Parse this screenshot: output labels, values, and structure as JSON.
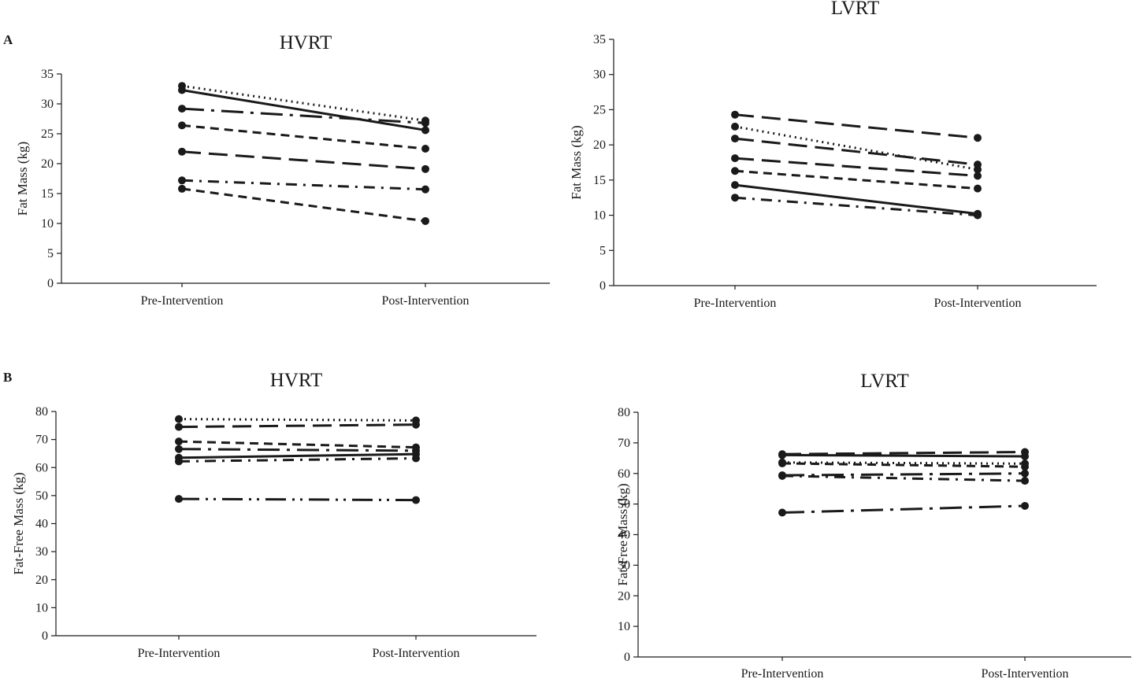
{
  "panel_labels": [
    "A",
    "B"
  ],
  "chart_data": [
    {
      "type": "line",
      "title": "HVRT",
      "ylabel": "Fat Mass (kg)",
      "xlabel": "",
      "categories": [
        "Pre-Intervention",
        "Post-Intervention"
      ],
      "ylim": [
        0,
        35
      ],
      "yticks": [
        0,
        5,
        10,
        15,
        20,
        25,
        30,
        35
      ],
      "grid": false,
      "series": [
        {
          "values": [
            33.0,
            27.2
          ],
          "dash": "dotted"
        },
        {
          "values": [
            32.3,
            25.6
          ],
          "dash": "solid"
        },
        {
          "values": [
            29.2,
            26.8
          ],
          "dash": "longdash-dot"
        },
        {
          "values": [
            26.4,
            22.5
          ],
          "dash": "dash"
        },
        {
          "values": [
            22.0,
            19.1
          ],
          "dash": "longdash"
        },
        {
          "values": [
            17.2,
            15.7
          ],
          "dash": "dashdot"
        },
        {
          "values": [
            15.8,
            10.4
          ],
          "dash": "dash"
        }
      ]
    },
    {
      "type": "line",
      "title": "LVRT",
      "ylabel": "Fat Mass (kg)",
      "xlabel": "",
      "categories": [
        "Pre-Intervention",
        "Post-Intervention"
      ],
      "ylim": [
        0,
        35
      ],
      "yticks": [
        0,
        5,
        10,
        15,
        20,
        25,
        30,
        35
      ],
      "grid": false,
      "series": [
        {
          "values": [
            24.3,
            21.0
          ],
          "dash": "longdash"
        },
        {
          "values": [
            22.6,
            16.5
          ],
          "dash": "dotted"
        },
        {
          "values": [
            20.9,
            17.2
          ],
          "dash": "longdash"
        },
        {
          "values": [
            18.1,
            15.6
          ],
          "dash": "longdash"
        },
        {
          "values": [
            16.3,
            13.8
          ],
          "dash": "dash"
        },
        {
          "values": [
            14.3,
            10.2
          ],
          "dash": "solid"
        },
        {
          "values": [
            12.5,
            10.0
          ],
          "dash": "dashdot"
        }
      ]
    },
    {
      "type": "line",
      "title": "HVRT",
      "ylabel": "Fat-Free Mass (kg)",
      "xlabel": "",
      "categories": [
        "Pre-Intervention",
        "Post-Intervention"
      ],
      "ylim": [
        0,
        80
      ],
      "yticks": [
        0,
        10,
        20,
        30,
        40,
        50,
        60,
        70,
        80
      ],
      "grid": false,
      "series": [
        {
          "values": [
            77.3,
            76.8
          ],
          "dash": "dotted"
        },
        {
          "values": [
            74.5,
            75.3
          ],
          "dash": "longdash"
        },
        {
          "values": [
            69.3,
            67.2
          ],
          "dash": "dash"
        },
        {
          "values": [
            66.6,
            66.0
          ],
          "dash": "longdash-dot"
        },
        {
          "values": [
            63.5,
            64.8
          ],
          "dash": "solid"
        },
        {
          "values": [
            62.2,
            63.3
          ],
          "dash": "dashdot"
        },
        {
          "values": [
            48.8,
            48.4
          ],
          "dash": "longdash-dotdot"
        }
      ]
    },
    {
      "type": "line",
      "title": "LVRT",
      "ylabel": "Fat-Free Mass (kg)",
      "xlabel": "",
      "categories": [
        "Pre-Intervention",
        "Post-Intervention"
      ],
      "ylim": [
        0,
        80
      ],
      "yticks": [
        0,
        10,
        20,
        30,
        40,
        50,
        60,
        70,
        80
      ],
      "grid": false,
      "series": [
        {
          "values": [
            66.3,
            67.0
          ],
          "dash": "longdash"
        },
        {
          "values": [
            66.0,
            65.6
          ],
          "dash": "solid"
        },
        {
          "values": [
            63.6,
            63.2
          ],
          "dash": "dotted"
        },
        {
          "values": [
            63.3,
            62.2
          ],
          "dash": "dash"
        },
        {
          "values": [
            59.4,
            60.0
          ],
          "dash": "longdash-dot"
        },
        {
          "values": [
            59.2,
            57.6
          ],
          "dash": "dashdot"
        },
        {
          "values": [
            47.2,
            49.4
          ],
          "dash": "longdash-dot"
        }
      ]
    }
  ]
}
